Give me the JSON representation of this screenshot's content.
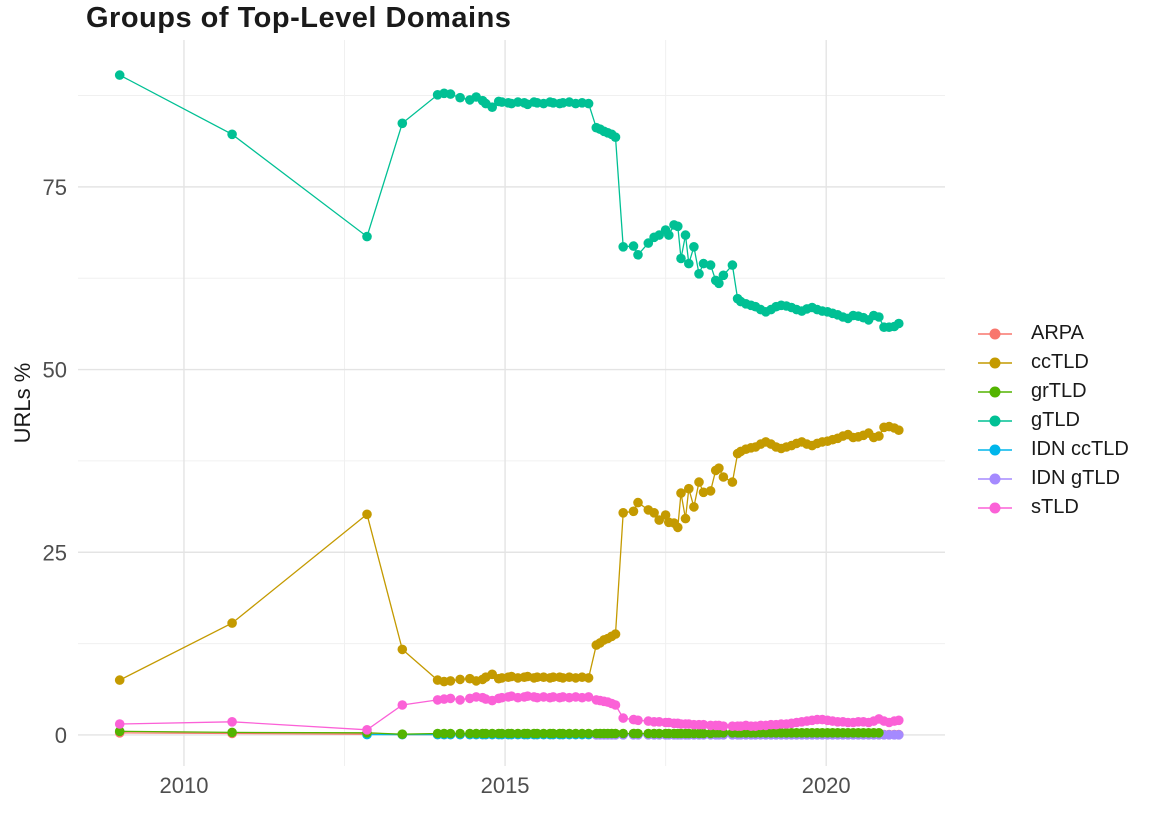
{
  "title": "Groups of Top-Level Domains",
  "ylabel": "URLs %",
  "chart_data": {
    "type": "line",
    "title": "Groups of Top-Level Domains",
    "xlabel": "",
    "ylabel": "URLs %",
    "grid": true,
    "legend_position": "right",
    "xticks": [
      2010,
      2015,
      2020
    ],
    "yticks": [
      0,
      25,
      50,
      75
    ],
    "x_minor": [
      2012.5,
      2017.5
    ],
    "y_minor": [
      12.5,
      37.5,
      62.5,
      87.5
    ],
    "xlim": [
      2008.35,
      2021.85
    ],
    "ylim": [
      -4.25,
      95.1
    ],
    "x": [
      2009.0,
      2010.75,
      2012.85,
      2013.4,
      2013.95,
      2014.05,
      2014.15,
      2014.3,
      2014.45,
      2014.55,
      2014.65,
      2014.7,
      2014.8,
      2014.9,
      2014.95,
      2015.05,
      2015.1,
      2015.2,
      2015.3,
      2015.35,
      2015.45,
      2015.5,
      2015.6,
      2015.7,
      2015.75,
      2015.85,
      2015.9,
      2016.0,
      2016.1,
      2016.2,
      2016.3,
      2016.42,
      2016.48,
      2016.54,
      2016.6,
      2016.66,
      2016.72,
      2016.84,
      2017.0,
      2017.07,
      2017.23,
      2017.32,
      2017.4,
      2017.5,
      2017.55,
      2017.63,
      2017.69,
      2017.74,
      2017.81,
      2017.86,
      2017.94,
      2018.02,
      2018.09,
      2018.2,
      2018.28,
      2018.33,
      2018.4,
      2018.54,
      2018.62,
      2018.67,
      2018.75,
      2018.83,
      2018.9,
      2018.98,
      2019.06,
      2019.14,
      2019.22,
      2019.3,
      2019.38,
      2019.46,
      2019.54,
      2019.62,
      2019.7,
      2019.78,
      2019.86,
      2019.94,
      2020.02,
      2020.1,
      2020.18,
      2020.26,
      2020.34,
      2020.42,
      2020.5,
      2020.58,
      2020.66,
      2020.74,
      2020.82,
      2020.9,
      2020.98,
      2021.06,
      2021.13
    ],
    "series": [
      {
        "name": "ARPA",
        "color": "#F8766D",
        "values": [
          0.3,
          0.2,
          0.1,
          0.05,
          0.05,
          0.05,
          0.05,
          0.05,
          0.05,
          0.05,
          0.05,
          0.05,
          0.05,
          0.05,
          0.05,
          0.05,
          0.05,
          0.05,
          0.05,
          0.05,
          0.05,
          0.05,
          0.05,
          0.05,
          0.05,
          0.05,
          0.05,
          0.05,
          0.05,
          0.05,
          0.05,
          0.05,
          0.05,
          0.05,
          0.05,
          0.05,
          0.05,
          0.05,
          0.05,
          0.05,
          0.05,
          0.05,
          0.05,
          0.05,
          0.05,
          0.05,
          0.05,
          0.05,
          0.05,
          0.05,
          0.05,
          0.05,
          0.05,
          0.05,
          0.05,
          0.05,
          0.05,
          0.05,
          0.05,
          0.05,
          0.05,
          0.05,
          0.05,
          0.05,
          0.05,
          0.05,
          0.05,
          0.05,
          0.05,
          0.05,
          0.05,
          0.05,
          0.05,
          0.05,
          0.05,
          0.05,
          0.05,
          0.05,
          0.05,
          0.05,
          0.05,
          0.05,
          0.05,
          0.05,
          0.05,
          0.05,
          0.05,
          0.05,
          0.05,
          0.05,
          0.05
        ]
      },
      {
        "name": "ccTLD",
        "color": "#C49A00",
        "values": [
          7.5,
          15.3,
          30.2,
          11.7,
          7.5,
          7.3,
          7.4,
          7.6,
          7.7,
          7.4,
          7.6,
          7.9,
          8.3,
          7.7,
          7.8,
          7.9,
          8.0,
          7.8,
          7.9,
          8.0,
          7.8,
          7.9,
          7.9,
          7.8,
          7.9,
          7.9,
          7.8,
          7.9,
          7.8,
          7.9,
          7.8,
          12.3,
          12.6,
          13.0,
          13.2,
          13.5,
          13.8,
          30.4,
          30.6,
          31.8,
          30.8,
          30.4,
          29.4,
          30.1,
          29.1,
          29.0,
          28.4,
          33.1,
          29.6,
          33.7,
          31.2,
          34.6,
          33.2,
          33.4,
          36.2,
          36.5,
          35.3,
          34.6,
          38.5,
          38.8,
          39.1,
          39.3,
          39.4,
          39.8,
          40.1,
          39.8,
          39.4,
          39.2,
          39.4,
          39.6,
          39.9,
          40.1,
          39.8,
          39.6,
          39.9,
          40.1,
          40.2,
          40.4,
          40.6,
          40.9,
          41.1,
          40.7,
          40.8,
          41.0,
          41.3,
          40.7,
          40.9,
          42.1,
          42.2,
          42.0,
          41.7
        ]
      },
      {
        "name": "grTLD",
        "color": "#53B400",
        "values": [
          0.5,
          0.35,
          0.3,
          0.1,
          0.2,
          0.2,
          0.2,
          0.2,
          0.2,
          0.2,
          0.2,
          0.2,
          0.2,
          0.2,
          0.2,
          0.2,
          0.2,
          0.2,
          0.2,
          0.2,
          0.2,
          0.2,
          0.2,
          0.2,
          0.2,
          0.2,
          0.2,
          0.2,
          0.2,
          0.2,
          0.2,
          0.2,
          0.2,
          0.2,
          0.2,
          0.2,
          0.2,
          0.2,
          0.2,
          0.2,
          0.2,
          0.2,
          0.2,
          0.2,
          0.2,
          0.2,
          0.2,
          0.2,
          0.2,
          0.2,
          0.2,
          0.2,
          0.2,
          0.2,
          0.3,
          0.3,
          0.3,
          0.3,
          0.3,
          0.3,
          0.3,
          0.3,
          0.3,
          0.3,
          0.3,
          0.3,
          0.3,
          0.3,
          0.3,
          0.3,
          0.3,
          0.3,
          0.3,
          0.3,
          0.3,
          0.3,
          0.3,
          0.3,
          0.3,
          0.3,
          0.3,
          0.3,
          0.3,
          0.3,
          0.3,
          0.3,
          0.3
        ]
      },
      {
        "name": "gTLD",
        "color": "#00C094",
        "values": [
          90.3,
          82.2,
          68.2,
          83.7,
          87.6,
          87.8,
          87.7,
          87.2,
          86.9,
          87.3,
          86.8,
          86.4,
          85.9,
          86.7,
          86.6,
          86.5,
          86.4,
          86.6,
          86.5,
          86.3,
          86.6,
          86.5,
          86.4,
          86.6,
          86.5,
          86.4,
          86.5,
          86.6,
          86.4,
          86.5,
          86.4,
          83.1,
          82.9,
          82.6,
          82.4,
          82.2,
          81.8,
          66.8,
          66.9,
          65.7,
          67.3,
          68.1,
          68.4,
          69.1,
          68.4,
          69.8,
          69.6,
          65.2,
          68.4,
          64.5,
          66.8,
          63.1,
          64.5,
          64.3,
          62.2,
          61.8,
          62.9,
          64.3,
          59.7,
          59.3,
          59.0,
          58.8,
          58.6,
          58.2,
          57.9,
          58.2,
          58.6,
          58.8,
          58.7,
          58.5,
          58.2,
          58.0,
          58.3,
          58.5,
          58.2,
          58.0,
          57.9,
          57.7,
          57.5,
          57.2,
          57.0,
          57.4,
          57.3,
          57.1,
          56.8,
          57.4,
          57.2,
          55.8,
          55.8,
          55.9,
          56.3
        ]
      },
      {
        "name": "IDN ccTLD",
        "color": "#00B6EB",
        "values": [
          null,
          null,
          0.05,
          0.05,
          0.05,
          0.05,
          0.05,
          0.05,
          0.05,
          0.05,
          0.05,
          0.05,
          0.05,
          0.05,
          0.05,
          0.05,
          0.05,
          0.05,
          0.05,
          0.05,
          0.05,
          0.05,
          0.05,
          0.05,
          0.05,
          0.05,
          0.05,
          0.05,
          0.05,
          0.05,
          0.05,
          0.05,
          0.05,
          0.05,
          0.05,
          0.05,
          0.05,
          0.05,
          0.05,
          0.05,
          0.05,
          0.05,
          0.05,
          0.05,
          0.05,
          0.05,
          0.05,
          0.05,
          0.05,
          0.05,
          0.05,
          0.05,
          0.05,
          0.05,
          0.1,
          0.1,
          0.1,
          0.1,
          0.1,
          0.1,
          0.1,
          0.1,
          0.1,
          0.1,
          0.1,
          0.1,
          0.1,
          0.1,
          0.1,
          0.1,
          0.1,
          0.1,
          0.1,
          0.1,
          0.1,
          0.1,
          0.1,
          0.1,
          0.1,
          0.1,
          0.1,
          0.1,
          0.1,
          0.1,
          0.1,
          0.1,
          0.1
        ]
      },
      {
        "name": "IDN gTLD",
        "color": "#A58AFF",
        "values": [
          null,
          null,
          null,
          null,
          null,
          null,
          null,
          null,
          null,
          null,
          null,
          null,
          null,
          null,
          null,
          null,
          null,
          null,
          null,
          null,
          null,
          null,
          null,
          null,
          null,
          null,
          null,
          null,
          null,
          null,
          null,
          0.02,
          0.02,
          0.02,
          0.02,
          0.02,
          0.02,
          0.02,
          0.02,
          0.02,
          0.02,
          0.02,
          0.02,
          0.02,
          0.02,
          0.02,
          0.02,
          0.02,
          0.02,
          0.02,
          0.02,
          0.02,
          0.02,
          0.02,
          0.02,
          0.02,
          0.02,
          0.02,
          0.02,
          0.02,
          0.02,
          0.02,
          0.02,
          0.02,
          0.02,
          0.02,
          0.02,
          0.02,
          0.02,
          0.02,
          0.02,
          0.02,
          0.02,
          0.02,
          0.02,
          0.02,
          0.02,
          0.02,
          0.02,
          0.02,
          0.02,
          0.02,
          0.02,
          0.02,
          0.02,
          0.02,
          0.02,
          0.02,
          0.02,
          0.02,
          0.02
        ]
      },
      {
        "name": "sTLD",
        "color": "#FB61D7",
        "values": [
          1.5,
          1.8,
          0.7,
          4.1,
          4.8,
          4.9,
          5.0,
          4.8,
          5.0,
          5.2,
          5.1,
          4.9,
          4.7,
          5.0,
          5.1,
          5.2,
          5.3,
          5.1,
          5.2,
          5.3,
          5.2,
          5.1,
          5.2,
          5.1,
          5.2,
          5.1,
          5.2,
          5.1,
          5.2,
          5.1,
          5.2,
          4.8,
          4.7,
          4.6,
          4.5,
          4.3,
          4.1,
          2.3,
          2.1,
          2.0,
          1.9,
          1.8,
          1.8,
          1.7,
          1.7,
          1.6,
          1.6,
          1.5,
          1.5,
          1.5,
          1.4,
          1.4,
          1.4,
          1.3,
          1.3,
          1.3,
          1.2,
          1.2,
          1.2,
          1.2,
          1.3,
          1.2,
          1.2,
          1.3,
          1.3,
          1.4,
          1.4,
          1.5,
          1.5,
          1.6,
          1.7,
          1.8,
          1.9,
          2.0,
          2.1,
          2.1,
          2.0,
          1.9,
          1.8,
          1.8,
          1.7,
          1.7,
          1.8,
          1.8,
          1.7,
          1.9,
          2.2,
          1.9,
          1.7,
          1.9,
          2.0
        ]
      }
    ]
  }
}
